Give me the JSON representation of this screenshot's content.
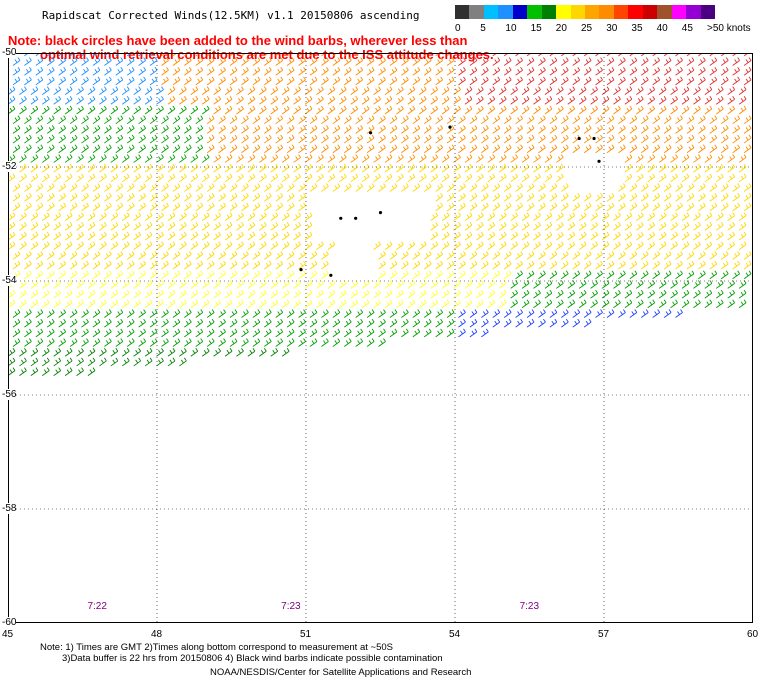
{
  "title": "Rapidscat Corrected Winds(12.5KM) v1.1 20150806 ascending",
  "note_line1": "Note: black circles have been added to the wind barbs, wherever less than",
  "note_line2": "optimal wind retrieval conditions are met due to the ISS attitude changes.",
  "legend": {
    "ticks": [
      "0",
      "5",
      "10",
      "15",
      "20",
      "25",
      "30",
      "35",
      "40",
      "45",
      ">50 knots"
    ],
    "colors": [
      "#303030",
      "#808080",
      "#00bfff",
      "#1e90ff",
      "#0000cd",
      "#00c000",
      "#008000",
      "#ffff00",
      "#ffd700",
      "#ffa500",
      "#ff8c00",
      "#ff4500",
      "#ff0000",
      "#cc0000",
      "#a0522d",
      "#ff00ff",
      "#9400d3",
      "#4b0082"
    ]
  },
  "axes": {
    "x_ticks": [
      "45",
      "48",
      "51",
      "54",
      "57",
      "60"
    ],
    "y_ticks": [
      "-50",
      "-52",
      "-54",
      "-56",
      "-58",
      "-60"
    ],
    "xlim": [
      45,
      60
    ],
    "ylim": [
      -60,
      -50
    ]
  },
  "times": [
    {
      "label": "7:22",
      "lon": 46.6
    },
    {
      "label": "7:23",
      "lon": 50.5
    },
    {
      "label": "7:23",
      "lon": 55.3
    }
  ],
  "footer_line1": "Note: 1) Times are GMT 2)Times along bottom correspond to measurement at ~50S",
  "footer_line2": "3)Data buffer is 22 hrs from 20150806 4) Black wind barbs indicate possible contamination",
  "footer_line3": "NOAA/NESDIS/Center for Satellite Applications and Research"
}
